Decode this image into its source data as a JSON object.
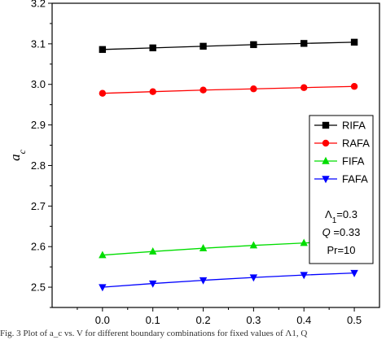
{
  "chart_data": {
    "type": "line",
    "xlabel": "V",
    "ylabel_main": "a",
    "ylabel_sub": "c",
    "x": [
      0.0,
      0.1,
      0.2,
      0.3,
      0.4,
      0.5
    ],
    "xlim": [
      -0.1,
      0.55
    ],
    "ylim": [
      2.45,
      3.2
    ],
    "xticks": [
      "0.0",
      "0.1",
      "0.2",
      "0.3",
      "0.4",
      "0.5"
    ],
    "yticks": [
      "2.5",
      "2.6",
      "2.7",
      "2.8",
      "2.9",
      "3.0",
      "3.1",
      "3.2"
    ],
    "series": [
      {
        "name": "RIFA",
        "color": "#000000",
        "marker": "square",
        "values": [
          3.086,
          3.09,
          3.094,
          3.098,
          3.101,
          3.104
        ]
      },
      {
        "name": "RAFA",
        "color": "#ff0000",
        "marker": "circle",
        "values": [
          2.978,
          2.982,
          2.986,
          2.989,
          2.992,
          2.995
        ]
      },
      {
        "name": "FIFA",
        "color": "#00dd00",
        "marker": "triangle-up",
        "values": [
          2.579,
          2.588,
          2.596,
          2.603,
          2.609,
          2.615
        ]
      },
      {
        "name": "FAFA",
        "color": "#0000ff",
        "marker": "triangle-down",
        "values": [
          2.5,
          2.509,
          2.517,
          2.524,
          2.53,
          2.535
        ]
      }
    ],
    "legend_position": "right",
    "parameters": [
      {
        "name": "Λ",
        "sub": "1",
        "value": "=0.3",
        "italic": false
      },
      {
        "name": "Q",
        "sub": "",
        "value": " =0.33",
        "italic": true
      },
      {
        "name": "Pr",
        "sub": "",
        "value": "=10",
        "italic": false
      }
    ],
    "grid": false
  },
  "caption": "Fig. 3 Plot of a_c vs. V for different boundary combinations for fixed values of Λ1, Q"
}
